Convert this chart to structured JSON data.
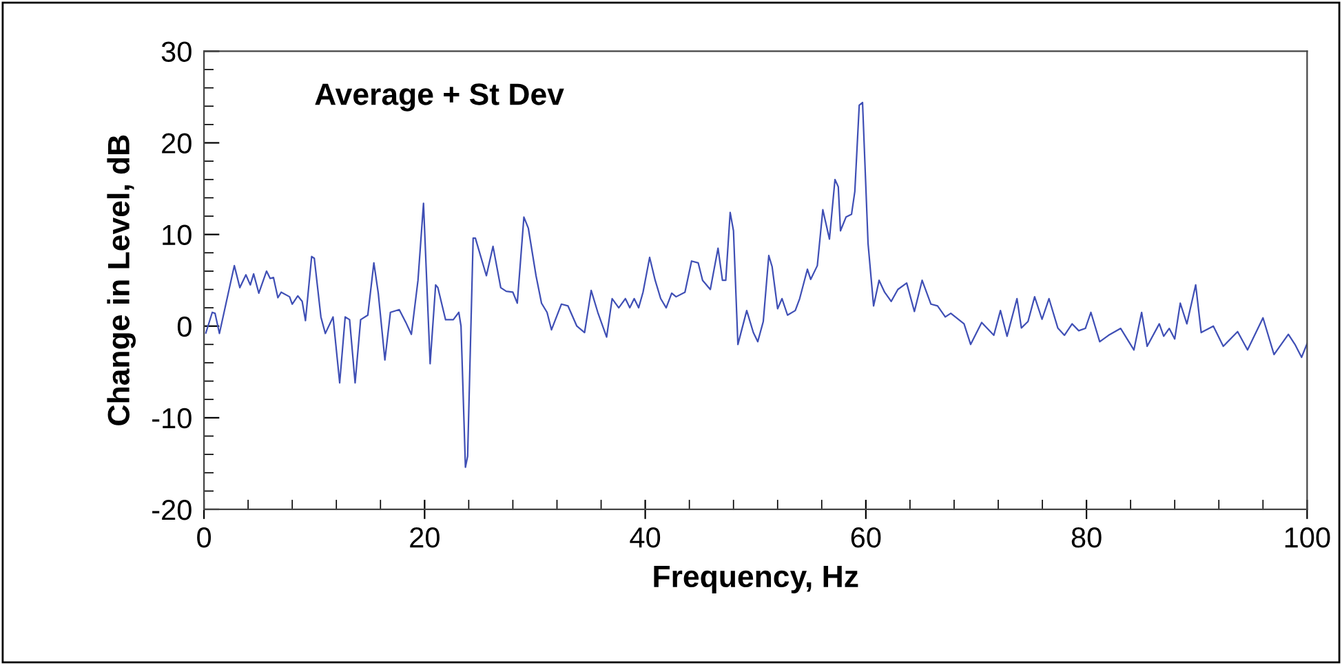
{
  "chart_data": {
    "type": "line",
    "xlabel": "Frequency, Hz",
    "ylabel": "Change in Level, dB",
    "annotations": [
      "Average + St Dev"
    ],
    "xlim": [
      0,
      100
    ],
    "xticks": [
      0,
      20,
      40,
      60,
      80,
      100
    ],
    "ylim": [
      -20,
      30
    ],
    "yticks": [
      -20,
      -10,
      0,
      10,
      20,
      30
    ],
    "grid": false,
    "legend": false,
    "marker": "none",
    "line_style": "solid",
    "series": [
      {
        "color": "#3f4fb5",
        "x": [
          0.17,
          0.75,
          1.0,
          1.4,
          2.0,
          2.75,
          3.25,
          3.8,
          4.2,
          4.5,
          4.97,
          5.67,
          6.0,
          6.3,
          6.7,
          7.0,
          7.76,
          8.0,
          8.5,
          8.9,
          9.2,
          9.76,
          10.0,
          10.6,
          11.0,
          11.7,
          12.3,
          12.8,
          13.2,
          13.7,
          14.2,
          14.85,
          15.4,
          15.8,
          16.4,
          16.9,
          17.7,
          18.3,
          18.8,
          19.4,
          19.9,
          20.5,
          21.0,
          21.2,
          21.9,
          22.6,
          23.1,
          23.3,
          23.7,
          23.9,
          24.4,
          24.6,
          25.6,
          26.2,
          26.9,
          27.4,
          28.0,
          28.4,
          29.0,
          29.4,
          30.1,
          30.6,
          31.1,
          31.5,
          32.4,
          33.0,
          33.8,
          34.5,
          35.1,
          35.7,
          36.5,
          37.0,
          37.6,
          38.2,
          38.6,
          39.0,
          39.4,
          39.8,
          40.4,
          40.9,
          41.4,
          41.9,
          42.4,
          42.8,
          43.6,
          44.2,
          44.8,
          45.2,
          45.9,
          46.6,
          47.0,
          47.3,
          47.7,
          48.0,
          48.4,
          49.2,
          49.8,
          50.2,
          50.7,
          51.2,
          51.5,
          52.0,
          52.4,
          52.9,
          53.6,
          54.0,
          54.7,
          55.0,
          55.6,
          56.1,
          56.7,
          57.2,
          57.5,
          57.7,
          58.2,
          58.7,
          59.0,
          59.4,
          59.7,
          60.2,
          60.7,
          61.2,
          61.7,
          62.3,
          62.9,
          63.7,
          64.4,
          65.1,
          65.9,
          66.5,
          67.2,
          67.7,
          68.9,
          69.5,
          70.5,
          71.6,
          72.2,
          72.8,
          73.7,
          74.1,
          74.7,
          75.3,
          75.97,
          76.6,
          77.4,
          78.0,
          78.7,
          79.3,
          79.9,
          80.4,
          81.2,
          82.0,
          83.1,
          84.3,
          85.0,
          85.5,
          86.6,
          87.0,
          87.5,
          88.0,
          88.5,
          89.1,
          89.9,
          90.4,
          91.5,
          92.4,
          93.7,
          94.6,
          96.0,
          97.0,
          98.3,
          98.9,
          99.5,
          100.0
        ],
        "values": [
          -0.75,
          1.5,
          1.4,
          -0.8,
          2.5,
          6.6,
          4.2,
          5.6,
          4.5,
          5.7,
          3.6,
          6.0,
          5.2,
          5.3,
          3.1,
          3.7,
          3.2,
          2.4,
          3.3,
          2.7,
          0.6,
          7.6,
          7.4,
          1.0,
          -0.8,
          1.0,
          -6.2,
          1.0,
          0.7,
          -6.2,
          0.7,
          1.2,
          6.9,
          3.6,
          -3.7,
          1.5,
          1.8,
          0.4,
          -0.9,
          5.0,
          13.4,
          -4.1,
          4.5,
          4.2,
          0.7,
          0.7,
          1.5,
          0,
          -15.4,
          -14.2,
          9.6,
          9.6,
          5.5,
          8.7,
          4.2,
          3.8,
          3.7,
          2.5,
          11.9,
          10.7,
          5.5,
          2.5,
          1.5,
          -0.4,
          2.4,
          2.2,
          0,
          -0.7,
          3.9,
          1.5,
          -1.2,
          3.0,
          2.0,
          3.0,
          2.0,
          3.0,
          2.0,
          3.7,
          7.5,
          5.0,
          3.0,
          2.0,
          3.6,
          3.2,
          3.7,
          7.1,
          6.9,
          5.0,
          4.0,
          8.5,
          5.0,
          5.0,
          12.4,
          10.4,
          -2.0,
          1.7,
          -0.7,
          -1.7,
          0.5,
          7.7,
          6.5,
          1.9,
          3.0,
          1.2,
          1.7,
          3.0,
          6.2,
          5.1,
          6.6,
          12.7,
          9.5,
          16.0,
          15.2,
          10.4,
          11.9,
          12.2,
          14.7,
          24.1,
          24.4,
          9.0,
          2.2,
          5.0,
          3.7,
          2.7,
          4.0,
          4.7,
          1.6,
          5.0,
          2.4,
          2.2,
          1.0,
          1.4,
          0.25,
          -2.0,
          0.4,
          -1.0,
          1.7,
          -1.1,
          3.0,
          -0.2,
          0.5,
          3.2,
          0.75,
          3.0,
          -0.2,
          -1.0,
          0.25,
          -0.5,
          -0.25,
          1.5,
          -1.7,
          -1.0,
          -0.25,
          -2.6,
          1.5,
          -2.2,
          0.25,
          -1.1,
          -0.25,
          -1.4,
          2.5,
          0.25,
          4.5,
          -0.7,
          0,
          -2.2,
          -0.6,
          -2.6,
          0.9,
          -3.1,
          -0.9,
          -2.0,
          -3.4,
          -1.9
        ]
      }
    ]
  }
}
